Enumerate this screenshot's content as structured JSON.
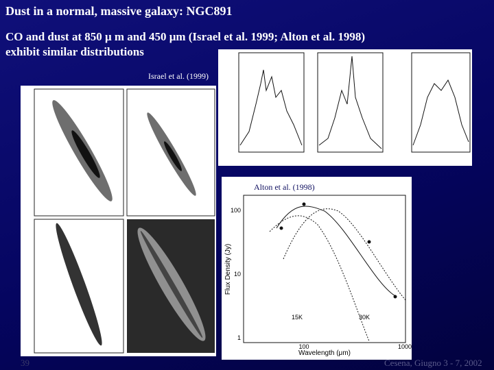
{
  "title": "Dust in a normal, massive galaxy: NGC891",
  "subtitle_lines": [
    "CO and dust at 850 μ m and 450 μm (Israel et al. 1999; Alton et al. 1998)",
    "exhibit similar distributions"
  ],
  "figures": {
    "israel": {
      "caption": "Israel et al. (1999)"
    },
    "alton": {
      "caption": "Alton et al. (1998)",
      "y_label": "Flux Density (Jy)",
      "x_label": "Wavelength (μm)",
      "y_ticks": [
        "100",
        "10",
        "1"
      ],
      "x_ticks": [
        "100",
        "1000"
      ],
      "curve_labels": [
        "15K",
        "30K"
      ]
    }
  },
  "footer": {
    "page": "39",
    "event": "Cesena, Giugno 3 - 7, 2002"
  }
}
